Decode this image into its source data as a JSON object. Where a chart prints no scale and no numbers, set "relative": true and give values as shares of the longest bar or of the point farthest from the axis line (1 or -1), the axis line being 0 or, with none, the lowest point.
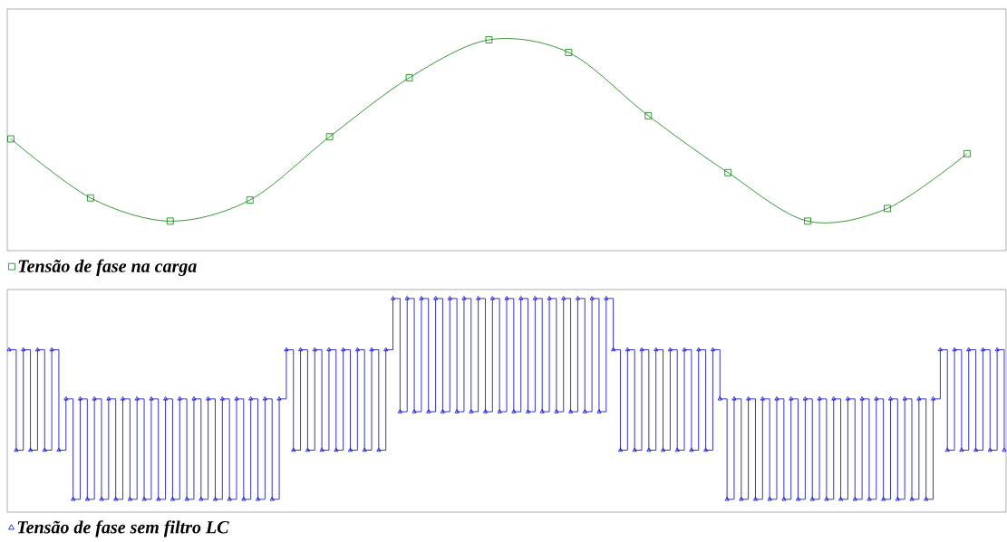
{
  "chart_data": [
    {
      "type": "line",
      "relative": true,
      "legend": "bottom left",
      "marker": "square",
      "line_style": "solid",
      "categories": [
        null,
        null,
        null,
        null,
        null,
        null,
        null,
        null,
        null,
        null,
        null,
        null,
        null
      ],
      "series": [
        {
          "name": "Tensão de fase na carga",
          "color": "#008000",
          "values": [
            0.53,
            0.25,
            0.14,
            0.24,
            0.54,
            0.82,
            1.0,
            0.94,
            0.64,
            0.37,
            0.14,
            0.2,
            0.46
          ]
        }
      ]
    },
    {
      "type": "step",
      "relative": true,
      "legend": "bottom left",
      "marker": "triangle",
      "line_style": "solid",
      "categories": [
        null,
        null,
        null,
        null,
        null,
        null,
        null,
        null,
        null,
        null,
        null,
        null,
        null,
        null,
        null,
        null,
        null,
        null,
        null,
        null,
        null,
        null,
        null,
        null,
        null,
        null,
        null,
        null,
        null,
        null,
        null,
        null,
        null,
        null,
        null,
        null,
        null,
        null,
        null,
        null,
        null,
        null,
        null,
        null,
        null,
        null,
        null,
        null,
        null,
        null,
        null,
        null,
        null,
        null,
        null,
        null,
        null,
        null,
        null,
        null,
        null,
        null,
        null,
        null,
        null,
        null,
        null,
        null,
        null,
        null,
        null,
        null,
        null,
        null,
        null,
        null,
        null,
        null,
        null,
        null,
        null,
        null,
        null,
        null,
        null,
        null,
        null,
        null,
        null,
        null,
        null,
        null,
        null,
        null,
        null,
        null,
        null,
        null,
        null,
        null,
        null,
        null,
        null,
        null,
        null,
        null,
        null,
        null,
        null,
        null,
        null,
        null,
        null,
        null,
        null,
        null,
        null,
        null,
        null,
        null,
        null,
        null,
        null,
        null,
        null,
        null,
        null,
        null,
        null,
        null,
        null,
        null,
        null,
        null,
        null,
        null,
        null,
        null,
        null,
        null,
        null
      ],
      "series": [
        {
          "name": "Tensão de fase sem filtro LC",
          "color": "#0000cc",
          "values": [
            0.76,
            0.29,
            0.76,
            0.29,
            0.76,
            0.29,
            0.76,
            0.29,
            0.53,
            0.06,
            0.53,
            0.06,
            0.53,
            0.06,
            0.53,
            0.06,
            0.53,
            0.06,
            0.53,
            0.06,
            0.53,
            0.06,
            0.53,
            0.06,
            0.53,
            0.06,
            0.53,
            0.06,
            0.53,
            0.06,
            0.53,
            0.06,
            0.53,
            0.06,
            0.53,
            0.06,
            0.53,
            0.06,
            0.53,
            0.76,
            0.29,
            0.76,
            0.29,
            0.76,
            0.29,
            0.76,
            0.29,
            0.76,
            0.29,
            0.76,
            0.29,
            0.76,
            0.29,
            0.76,
            1,
            0.47,
            1,
            0.47,
            1,
            0.47,
            1,
            0.47,
            1,
            0.47,
            1,
            0.47,
            1,
            0.47,
            1,
            0.47,
            1,
            0.47,
            1,
            0.47,
            1,
            0.47,
            1,
            0.47,
            1,
            0.47,
            1,
            0.47,
            1,
            0.47,
            1,
            0.76,
            0.29,
            0.76,
            0.29,
            0.76,
            0.29,
            0.76,
            0.29,
            0.76,
            0.29,
            0.76,
            0.29,
            0.76,
            0.29,
            0.76,
            0.53,
            0.06,
            0.53,
            0.06,
            0.53,
            0.06,
            0.53,
            0.06,
            0.53,
            0.06,
            0.53,
            0.06,
            0.53,
            0.06,
            0.53,
            0.06,
            0.53,
            0.06,
            0.53,
            0.06,
            0.53,
            0.06,
            0.53,
            0.06,
            0.53,
            0.06,
            0.53,
            0.06,
            0.53,
            0.06,
            0.53,
            0.76,
            0.29,
            0.76,
            0.29,
            0.76,
            0.29,
            0.76,
            0.29,
            0.76,
            0.29
          ]
        }
      ]
    }
  ]
}
